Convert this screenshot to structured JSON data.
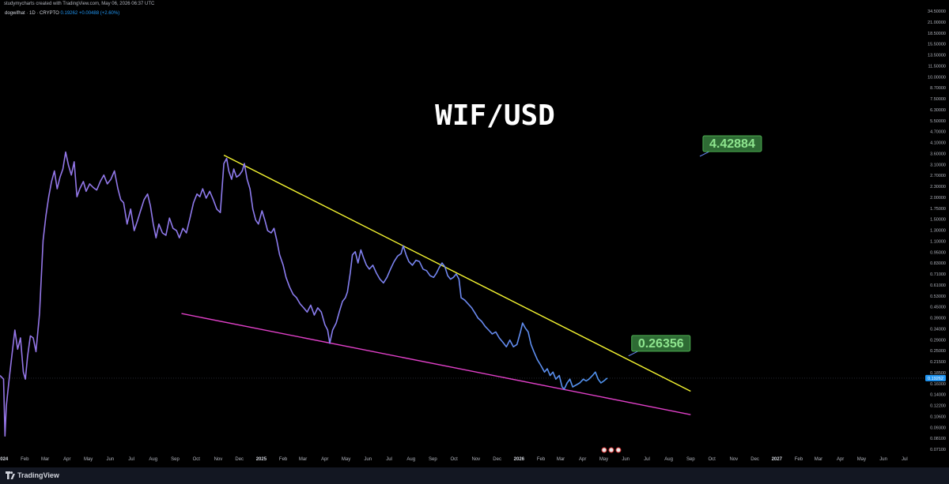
{
  "header": {
    "attribution": "studymycharts created with TradingView.com, May 06, 2026 06:37 UTC",
    "symbol": "dogwifhat · 1D · CRYPTO",
    "price": "0.19262",
    "change": "+0.00488 (+2.60%)"
  },
  "footer": {
    "brand": "TradingView"
  },
  "colors": {
    "background": "#000000",
    "price_line_start": "#9575e6",
    "price_line_end": "#3aa6f0",
    "resistance_line": "#f5f531",
    "support_line": "#e040c8",
    "label_bg": "#2e6b34",
    "label_border": "#4caf50",
    "label_text": "#8ee58e",
    "current_price_tag": "#2196f3"
  },
  "chart_data": {
    "type": "line",
    "title": "WIF/USD",
    "scale": "log",
    "ylim": [
      0.0705,
      34.5
    ],
    "xlim": [
      "2023-12-28",
      "2027-07-28"
    ],
    "y_ticks": [
      "34.50000",
      "21.00000",
      "18.50000",
      "15.50000",
      "13.50000",
      "11.50000",
      "10.00000",
      "8.70000",
      "7.50000",
      "6.30000",
      "5.50000",
      "4.70000",
      "4.10000",
      "3.60000",
      "3.10000",
      "2.70000",
      "2.30000",
      "2.00000",
      "1.75000",
      "1.50000",
      "1.30000",
      "1.10000",
      "0.95000",
      "0.83000",
      "0.71000",
      "0.61000",
      "0.53000",
      "0.45000",
      "0.39000",
      "0.34000",
      "0.29000",
      "0.25000",
      "0.21500",
      "0.18500",
      "0.16000",
      "0.14000",
      "0.12200",
      "0.10600",
      "0.09300",
      "0.08100",
      "0.07100"
    ],
    "x_ticks": [
      {
        "label": "2024",
        "date": "2024-01-01",
        "bold": true
      },
      {
        "label": "Feb",
        "date": "2024-02-01"
      },
      {
        "label": "Mar",
        "date": "2024-03-01"
      },
      {
        "label": "Apr",
        "date": "2024-04-01"
      },
      {
        "label": "May",
        "date": "2024-05-01"
      },
      {
        "label": "Jun",
        "date": "2024-06-01"
      },
      {
        "label": "Jul",
        "date": "2024-07-01"
      },
      {
        "label": "Aug",
        "date": "2024-08-01"
      },
      {
        "label": "Sep",
        "date": "2024-09-01"
      },
      {
        "label": "Oct",
        "date": "2024-10-01"
      },
      {
        "label": "Nov",
        "date": "2024-11-01"
      },
      {
        "label": "Dec",
        "date": "2024-12-01"
      },
      {
        "label": "2025",
        "date": "2025-01-01",
        "bold": true
      },
      {
        "label": "Feb",
        "date": "2025-02-01"
      },
      {
        "label": "Mar",
        "date": "2025-03-01"
      },
      {
        "label": "Apr",
        "date": "2025-04-01"
      },
      {
        "label": "May",
        "date": "2025-05-01"
      },
      {
        "label": "Jun",
        "date": "2025-06-01"
      },
      {
        "label": "Jul",
        "date": "2025-07-01"
      },
      {
        "label": "Aug",
        "date": "2025-08-01"
      },
      {
        "label": "Sep",
        "date": "2025-09-01"
      },
      {
        "label": "Oct",
        "date": "2025-10-01"
      },
      {
        "label": "Nov",
        "date": "2025-11-01"
      },
      {
        "label": "Dec",
        "date": "2025-12-01"
      },
      {
        "label": "2026",
        "date": "2026-01-01",
        "bold": true
      },
      {
        "label": "Feb",
        "date": "2026-02-01"
      },
      {
        "label": "Mar",
        "date": "2026-03-01"
      },
      {
        "label": "Apr",
        "date": "2026-04-01"
      },
      {
        "label": "May",
        "date": "2026-05-01"
      },
      {
        "label": "Jun",
        "date": "2026-06-01"
      },
      {
        "label": "Jul",
        "date": "2026-07-01"
      },
      {
        "label": "Aug",
        "date": "2026-08-01"
      },
      {
        "label": "Sep",
        "date": "2026-09-01"
      },
      {
        "label": "Oct",
        "date": "2026-10-01"
      },
      {
        "label": "Nov",
        "date": "2026-11-01"
      },
      {
        "label": "Dec",
        "date": "2026-12-01"
      },
      {
        "label": "2027",
        "date": "2027-01-01",
        "bold": true
      },
      {
        "label": "Feb",
        "date": "2027-02-01"
      },
      {
        "label": "Mar",
        "date": "2027-03-01"
      },
      {
        "label": "Apr",
        "date": "2027-04-01"
      },
      {
        "label": "May",
        "date": "2027-05-01"
      },
      {
        "label": "Jun",
        "date": "2027-06-01"
      },
      {
        "label": "Jul",
        "date": "2027-07-01"
      }
    ],
    "series": [
      {
        "values": [
          [
            "2023-12-28",
            0.2
          ],
          [
            "2024-01-02",
            0.19
          ],
          [
            "2024-01-04",
            0.085
          ],
          [
            "2024-01-06",
            0.13
          ],
          [
            "2024-01-10",
            0.19
          ],
          [
            "2024-01-14",
            0.27
          ],
          [
            "2024-01-18",
            0.38
          ],
          [
            "2024-01-22",
            0.29
          ],
          [
            "2024-01-26",
            0.34
          ],
          [
            "2024-01-30",
            0.21
          ],
          [
            "2024-02-02",
            0.19
          ],
          [
            "2024-02-05",
            0.26
          ],
          [
            "2024-02-09",
            0.35
          ],
          [
            "2024-02-13",
            0.34
          ],
          [
            "2024-02-17",
            0.28
          ],
          [
            "2024-02-22",
            0.48
          ],
          [
            "2024-02-27",
            1.35
          ],
          [
            "2024-03-02",
            1.9
          ],
          [
            "2024-03-06",
            2.5
          ],
          [
            "2024-03-10",
            3.1
          ],
          [
            "2024-03-14",
            3.6
          ],
          [
            "2024-03-18",
            2.8
          ],
          [
            "2024-03-22",
            3.3
          ],
          [
            "2024-03-26",
            3.7
          ],
          [
            "2024-03-30",
            4.7
          ],
          [
            "2024-04-03",
            3.9
          ],
          [
            "2024-04-07",
            3.4
          ],
          [
            "2024-04-11",
            4.1
          ],
          [
            "2024-04-15",
            2.5
          ],
          [
            "2024-04-19",
            2.8
          ],
          [
            "2024-04-24",
            3.1
          ],
          [
            "2024-04-28",
            2.7
          ],
          [
            "2024-05-03",
            3.0
          ],
          [
            "2024-05-08",
            2.85
          ],
          [
            "2024-05-13",
            2.75
          ],
          [
            "2024-05-18",
            3.1
          ],
          [
            "2024-05-23",
            3.4
          ],
          [
            "2024-05-28",
            3.0
          ],
          [
            "2024-06-02",
            3.2
          ],
          [
            "2024-06-07",
            3.6
          ],
          [
            "2024-06-12",
            2.8
          ],
          [
            "2024-06-16",
            2.4
          ],
          [
            "2024-06-20",
            2.3
          ],
          [
            "2024-06-25",
            1.7
          ],
          [
            "2024-06-30",
            2.1
          ],
          [
            "2024-07-05",
            1.55
          ],
          [
            "2024-07-10",
            1.8
          ],
          [
            "2024-07-14",
            2.05
          ],
          [
            "2024-07-19",
            2.4
          ],
          [
            "2024-07-24",
            2.6
          ],
          [
            "2024-07-28",
            2.2
          ],
          [
            "2024-08-01",
            1.7
          ],
          [
            "2024-08-05",
            1.4
          ],
          [
            "2024-08-09",
            1.7
          ],
          [
            "2024-08-14",
            1.5
          ],
          [
            "2024-08-19",
            1.45
          ],
          [
            "2024-08-24",
            1.85
          ],
          [
            "2024-08-29",
            1.6
          ],
          [
            "2024-09-03",
            1.55
          ],
          [
            "2024-09-07",
            1.4
          ],
          [
            "2024-09-12",
            1.6
          ],
          [
            "2024-09-17",
            1.5
          ],
          [
            "2024-09-22",
            1.85
          ],
          [
            "2024-09-27",
            2.3
          ],
          [
            "2024-10-02",
            2.6
          ],
          [
            "2024-10-06",
            2.5
          ],
          [
            "2024-10-10",
            2.8
          ],
          [
            "2024-10-15",
            2.45
          ],
          [
            "2024-10-20",
            2.7
          ],
          [
            "2024-10-25",
            2.4
          ],
          [
            "2024-10-30",
            2.1
          ],
          [
            "2024-11-04",
            2.0
          ],
          [
            "2024-11-09",
            4.0
          ],
          [
            "2024-11-13",
            4.3
          ],
          [
            "2024-11-16",
            3.6
          ],
          [
            "2024-11-20",
            3.2
          ],
          [
            "2024-11-23",
            3.7
          ],
          [
            "2024-11-27",
            3.3
          ],
          [
            "2024-12-01",
            3.4
          ],
          [
            "2024-12-05",
            3.6
          ],
          [
            "2024-12-08",
            4.0
          ],
          [
            "2024-12-12",
            3.2
          ],
          [
            "2024-12-16",
            2.8
          ],
          [
            "2024-12-20",
            2.1
          ],
          [
            "2024-12-24",
            1.8
          ],
          [
            "2024-12-28",
            1.7
          ],
          [
            "2025-01-02",
            2.05
          ],
          [
            "2025-01-06",
            1.8
          ],
          [
            "2025-01-10",
            1.55
          ],
          [
            "2025-01-15",
            1.5
          ],
          [
            "2025-01-19",
            1.6
          ],
          [
            "2025-01-23",
            1.35
          ],
          [
            "2025-01-27",
            1.1
          ],
          [
            "2025-02-01",
            0.95
          ],
          [
            "2025-02-05",
            0.8
          ],
          [
            "2025-02-10",
            0.7
          ],
          [
            "2025-02-15",
            0.63
          ],
          [
            "2025-02-20",
            0.6
          ],
          [
            "2025-02-25",
            0.55
          ],
          [
            "2025-03-02",
            0.52
          ],
          [
            "2025-03-07",
            0.49
          ],
          [
            "2025-03-12",
            0.54
          ],
          [
            "2025-03-17",
            0.47
          ],
          [
            "2025-03-22",
            0.52
          ],
          [
            "2025-03-27",
            0.49
          ],
          [
            "2025-04-01",
            0.41
          ],
          [
            "2025-04-05",
            0.38
          ],
          [
            "2025-04-08",
            0.315
          ],
          [
            "2025-04-12",
            0.38
          ],
          [
            "2025-04-17",
            0.42
          ],
          [
            "2025-04-22",
            0.5
          ],
          [
            "2025-04-26",
            0.57
          ],
          [
            "2025-04-30",
            0.6
          ],
          [
            "2025-05-03",
            0.65
          ],
          [
            "2025-05-07",
            0.85
          ],
          [
            "2025-05-10",
            1.1
          ],
          [
            "2025-05-14",
            1.15
          ],
          [
            "2025-05-18",
            0.98
          ],
          [
            "2025-05-22",
            1.18
          ],
          [
            "2025-05-26",
            1.05
          ],
          [
            "2025-05-30",
            0.95
          ],
          [
            "2025-06-03",
            0.9
          ],
          [
            "2025-06-08",
            0.95
          ],
          [
            "2025-06-13",
            0.85
          ],
          [
            "2025-06-18",
            0.78
          ],
          [
            "2025-06-23",
            0.74
          ],
          [
            "2025-06-28",
            0.8
          ],
          [
            "2025-07-03",
            0.9
          ],
          [
            "2025-07-08",
            1.0
          ],
          [
            "2025-07-13",
            1.08
          ],
          [
            "2025-07-18",
            1.12
          ],
          [
            "2025-07-21",
            1.25
          ],
          [
            "2025-07-25",
            1.1
          ],
          [
            "2025-07-29",
            1.0
          ],
          [
            "2025-08-03",
            0.95
          ],
          [
            "2025-08-08",
            1.02
          ],
          [
            "2025-08-13",
            1.0
          ],
          [
            "2025-08-18",
            0.9
          ],
          [
            "2025-08-23",
            0.88
          ],
          [
            "2025-08-28",
            0.82
          ],
          [
            "2025-09-02",
            0.8
          ],
          [
            "2025-09-06",
            0.85
          ],
          [
            "2025-09-10",
            0.92
          ],
          [
            "2025-09-14",
            0.98
          ],
          [
            "2025-09-18",
            0.93
          ],
          [
            "2025-09-22",
            0.82
          ],
          [
            "2025-09-26",
            0.78
          ],
          [
            "2025-09-30",
            0.8
          ],
          [
            "2025-10-04",
            0.84
          ],
          [
            "2025-10-08",
            0.78
          ],
          [
            "2025-10-11",
            0.6
          ],
          [
            "2025-10-16",
            0.58
          ],
          [
            "2025-10-21",
            0.55
          ],
          [
            "2025-10-26",
            0.52
          ],
          [
            "2025-10-31",
            0.48
          ],
          [
            "2025-11-04",
            0.45
          ],
          [
            "2025-11-09",
            0.43
          ],
          [
            "2025-11-14",
            0.4
          ],
          [
            "2025-11-19",
            0.38
          ],
          [
            "2025-11-24",
            0.36
          ],
          [
            "2025-11-29",
            0.37
          ],
          [
            "2025-12-04",
            0.34
          ],
          [
            "2025-12-09",
            0.32
          ],
          [
            "2025-12-14",
            0.3
          ],
          [
            "2025-12-19",
            0.33
          ],
          [
            "2025-12-24",
            0.3
          ],
          [
            "2025-12-29",
            0.31
          ],
          [
            "2026-01-03",
            0.37
          ],
          [
            "2026-01-06",
            0.42
          ],
          [
            "2026-01-10",
            0.39
          ],
          [
            "2026-01-14",
            0.37
          ],
          [
            "2026-01-18",
            0.31
          ],
          [
            "2026-01-22",
            0.28
          ],
          [
            "2026-01-27",
            0.25
          ],
          [
            "2026-02-01",
            0.23
          ],
          [
            "2026-02-06",
            0.21
          ],
          [
            "2026-02-10",
            0.22
          ],
          [
            "2026-02-14",
            0.2
          ],
          [
            "2026-02-18",
            0.21
          ],
          [
            "2026-02-22",
            0.19
          ],
          [
            "2026-02-27",
            0.2
          ],
          [
            "2026-03-03",
            0.17
          ],
          [
            "2026-03-06",
            0.165
          ],
          [
            "2026-03-10",
            0.18
          ],
          [
            "2026-03-14",
            0.19
          ],
          [
            "2026-03-18",
            0.17
          ],
          [
            "2026-03-23",
            0.175
          ],
          [
            "2026-03-28",
            0.18
          ],
          [
            "2026-04-02",
            0.19
          ],
          [
            "2026-04-06",
            0.185
          ],
          [
            "2026-04-10",
            0.19
          ],
          [
            "2026-04-15",
            0.2
          ],
          [
            "2026-04-19",
            0.21
          ],
          [
            "2026-04-23",
            0.19
          ],
          [
            "2026-04-27",
            0.18
          ],
          [
            "2026-05-01",
            0.185
          ],
          [
            "2026-05-04",
            0.19
          ],
          [
            "2026-05-06",
            0.19262
          ]
        ]
      }
    ],
    "trendlines": [
      {
        "kind": "resistance",
        "from": [
          "2024-11-09",
          4.5
        ],
        "to": [
          "2026-09-01",
          0.16
        ]
      },
      {
        "kind": "support",
        "from": [
          "2024-09-10",
          0.48
        ],
        "to": [
          "2026-09-01",
          0.115
        ]
      }
    ],
    "annotations": [
      {
        "text": "4.42884",
        "pointer": [
          "2026-09-14",
          4.42884
        ]
      },
      {
        "text": "0.26356",
        "pointer": [
          "2026-06-05",
          0.26356
        ]
      }
    ],
    "current_price": {
      "value": 0.19262,
      "label": "0.19262"
    }
  }
}
